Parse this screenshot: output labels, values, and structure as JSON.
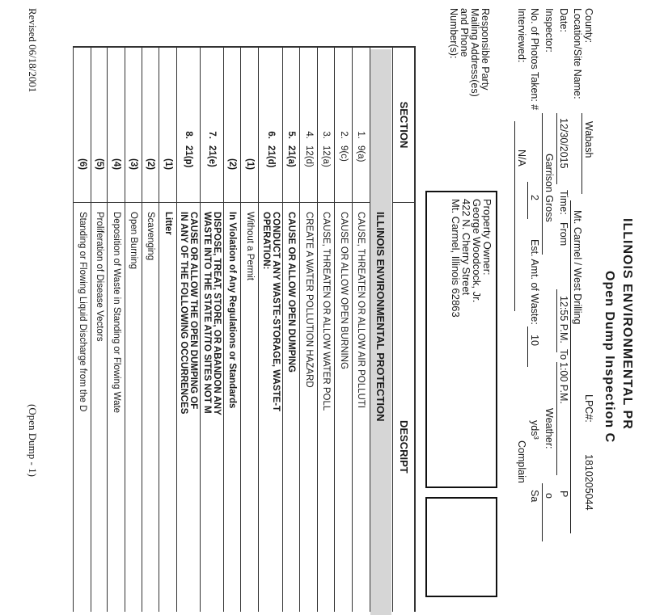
{
  "header": {
    "title_line1": "ILLINOIS ENVIRONMENTAL PR",
    "title_line2": "Open Dump Inspection C"
  },
  "fields": {
    "county_label": "County:",
    "county": "Wabash",
    "lpc_label": "LPC#:",
    "lpc": "1810205044",
    "location_label": "Location/Site Name:",
    "location": "Mt. Carmel / West Drilling",
    "date_label": "Date:",
    "date": "12/30/2015",
    "time_label": "Time:",
    "from_label": "From",
    "time_from": "12:55 P.M.",
    "to_label": "To",
    "time_to": "1:00 P.M.",
    "p_cut": "P",
    "inspector_label": "Inspector:",
    "inspector": "Garrison Gross",
    "weather_label": "Weather:",
    "weather": "o",
    "photos_label": "No. of Photos Taken: #",
    "photos": "2",
    "waste_label": "Est. Amt. of Waste:",
    "waste": "10",
    "waste_unit": "yds³",
    "sa_cut": "Sa",
    "interviewed_label": "Interviewed:",
    "interviewed": "N/A",
    "complaint_cut": "Complain"
  },
  "responsible": {
    "label_lines": [
      "Responsible Party",
      "Mailing Address(es)",
      "and Phone",
      "Number(s):"
    ],
    "owner_lines": [
      "Property Owner:",
      "George Woodcock, Jr.",
      "422 N. Cherry Street",
      "Mt. Carmel, Illinois 62863"
    ]
  },
  "table": {
    "section_header": "SECTION",
    "description_header": "DESCRIPT",
    "act_title": "ILLINOIS ENVIRONMENTAL PROTECTION",
    "rows": [
      {
        "num": "1.",
        "code": "9(a)",
        "sub": "",
        "desc": [
          "CAUSE, THREATEN OR ALLOW AIR POLLUTI"
        ],
        "bold": false
      },
      {
        "num": "2.",
        "code": "9(c)",
        "sub": "",
        "desc": [
          "CAUSE OR ALLOW OPEN BURNING"
        ],
        "bold": false
      },
      {
        "num": "3.",
        "code": "12(a)",
        "sub": "",
        "desc": [
          "CAUSE, THREATEN OR ALLOW WATER POLL"
        ],
        "bold": false
      },
      {
        "num": "4.",
        "code": "12(d)",
        "sub": "",
        "desc": [
          "CREATE A WATER POLLUTION HAZARD"
        ],
        "bold": false
      },
      {
        "num": "5.",
        "code": "21(a)",
        "sub": "",
        "desc": [
          "CAUSE OR ALLOW OPEN DUMPING"
        ],
        "bold": true
      },
      {
        "num": "6.",
        "code": "21(d)",
        "sub": "",
        "desc": [
          "CONDUCT ANY WASTE-STORAGE, WASTE-T",
          "OPERATION:"
        ],
        "bold": true
      },
      {
        "num": "",
        "code": "",
        "sub": "(1)",
        "desc": [
          "Without a Permit"
        ],
        "bold": false
      },
      {
        "num": "",
        "code": "",
        "sub": "(2)",
        "desc": [
          "In Violation of Any Regulations or Standards"
        ],
        "bold": true
      },
      {
        "num": "7.",
        "code": "21(e)",
        "sub": "",
        "desc": [
          "DISPOSE, TREAT, STORE, OR ABANDON ANY",
          "WASTE INTO THE STATE AT/TO SITES NOT M"
        ],
        "bold": true
      },
      {
        "num": "8.",
        "code": "21(p)",
        "sub": "",
        "desc": [
          "CAUSE OR ALLOW THE OPEN DUMPING OF",
          "IN ANY OF THE FOLLOWING OCCURRENCES"
        ],
        "bold": true
      },
      {
        "num": "",
        "code": "",
        "sub": "(1)",
        "desc": [
          "Litter"
        ],
        "bold": true
      },
      {
        "num": "",
        "code": "",
        "sub": "(2)",
        "desc": [
          "Scavenging"
        ],
        "bold": false
      },
      {
        "num": "",
        "code": "",
        "sub": "(3)",
        "desc": [
          "Open Burning"
        ],
        "bold": false
      },
      {
        "num": "",
        "code": "",
        "sub": "(4)",
        "desc": [
          "Deposition of Waste in Standing or Flowing Wate"
        ],
        "bold": false
      },
      {
        "num": "",
        "code": "",
        "sub": "(5)",
        "desc": [
          "Proliferation of Disease Vectors"
        ],
        "bold": false
      },
      {
        "num": "",
        "code": "",
        "sub": "(6)",
        "desc": [
          "Standing or Flowing Liquid Discharge from the D"
        ],
        "bold": false
      }
    ]
  },
  "footer": {
    "revised": "Revised 06/18/2001",
    "page_label": "(Open Dump - 1)"
  },
  "colors": {
    "act_title_bg": "#d6d6d6",
    "ink": "#1a1a1a"
  }
}
